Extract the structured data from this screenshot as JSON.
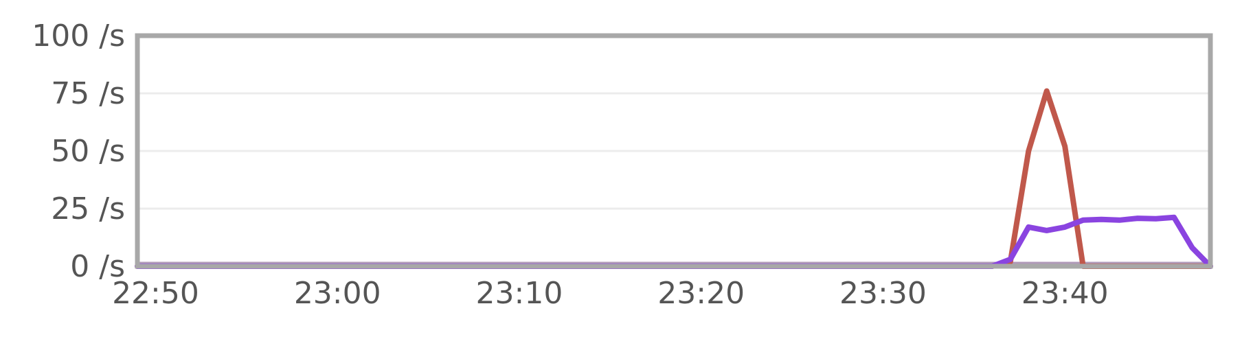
{
  "chart_data": {
    "type": "line",
    "title": "",
    "xlabel": "",
    "ylabel": "",
    "x_ticks": [
      "22:50",
      "23:00",
      "23:10",
      "23:20",
      "23:30",
      "23:40"
    ],
    "y_ticks": [
      "0 /s",
      "25 /s",
      "50 /s",
      "75 /s",
      "100 /s"
    ],
    "y_tick_values": [
      0,
      25,
      50,
      75,
      100
    ],
    "ylim": [
      0,
      100
    ],
    "xlim": [
      "22:49",
      "23:48"
    ],
    "grid": true,
    "legend": "none",
    "series": [
      {
        "color": "#c0584b",
        "points": [
          [
            "22:49",
            0
          ],
          [
            "23:36",
            0
          ],
          [
            "23:37",
            2
          ],
          [
            "23:38",
            50
          ],
          [
            "23:39",
            76
          ],
          [
            "23:40",
            52
          ],
          [
            "23:41",
            0
          ],
          [
            "23:48",
            0
          ]
        ]
      },
      {
        "color": "#8a44e0",
        "points": [
          [
            "22:49",
            0
          ],
          [
            "23:36",
            0
          ],
          [
            "23:37",
            3
          ],
          [
            "23:38",
            17
          ],
          [
            "23:39",
            15.5
          ],
          [
            "23:40",
            17
          ],
          [
            "23:41",
            20
          ],
          [
            "23:42",
            20.3
          ],
          [
            "23:43",
            20
          ],
          [
            "23:44",
            20.8
          ],
          [
            "23:45",
            20.6
          ],
          [
            "23:46",
            21.2
          ],
          [
            "23:47",
            8
          ],
          [
            "23:48",
            0
          ]
        ]
      }
    ],
    "baseline_color": "#b09ab8"
  },
  "colors": {
    "frame": "#a8a8a8",
    "grid": "#ececec",
    "text": "#555555"
  }
}
